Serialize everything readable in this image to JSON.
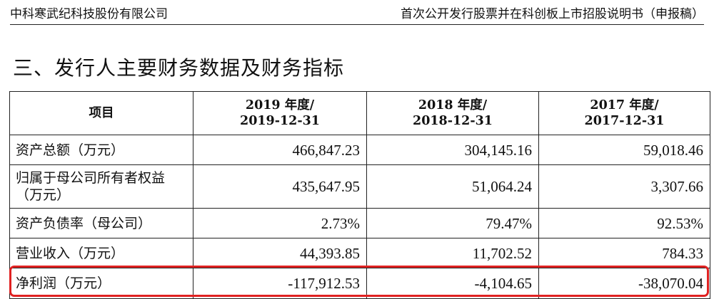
{
  "header": {
    "company": "中科寒武纪科技股份有限公司",
    "doc_title": "首次公开发行股票并在科创板上市招股说明书（申报稿）"
  },
  "section_title": "三、发行人主要财务数据及财务指标",
  "table": {
    "columns": [
      {
        "line1": "项目",
        "line2": ""
      },
      {
        "line1": "2019 年度/",
        "line2": "2019-12-31"
      },
      {
        "line1": "2018 年度/",
        "line2": "2018-12-31"
      },
      {
        "line1": "2017 年度/",
        "line2": "2017-12-31"
      }
    ],
    "rows": [
      {
        "label_1": "资产总额（万元）",
        "label_2": "",
        "v2019": "466,847.23",
        "v2018": "304,145.16",
        "v2017": "59,018.46"
      },
      {
        "label_1": "归属于母公司所有者权益",
        "label_2": "（万元）",
        "v2019": "435,647.95",
        "v2018": "51,064.24",
        "v2017": "3,307.66"
      },
      {
        "label_1": "资产负债率（母公司）",
        "label_2": "",
        "v2019": "2.73%",
        "v2018": "79.47%",
        "v2017": "92.53%"
      },
      {
        "label_1": "营业收入（万元）",
        "label_2": "",
        "v2019": "44,393.85",
        "v2018": "11,702.52",
        "v2017": "784.33"
      },
      {
        "label_1": "净利润（万元）",
        "label_2": "",
        "v2019": "-117,912.53",
        "v2018": "-4,104.65",
        "v2017": "-38,070.04"
      }
    ]
  },
  "colors": {
    "highlight_border": "#e02222",
    "rule": "#222222"
  }
}
